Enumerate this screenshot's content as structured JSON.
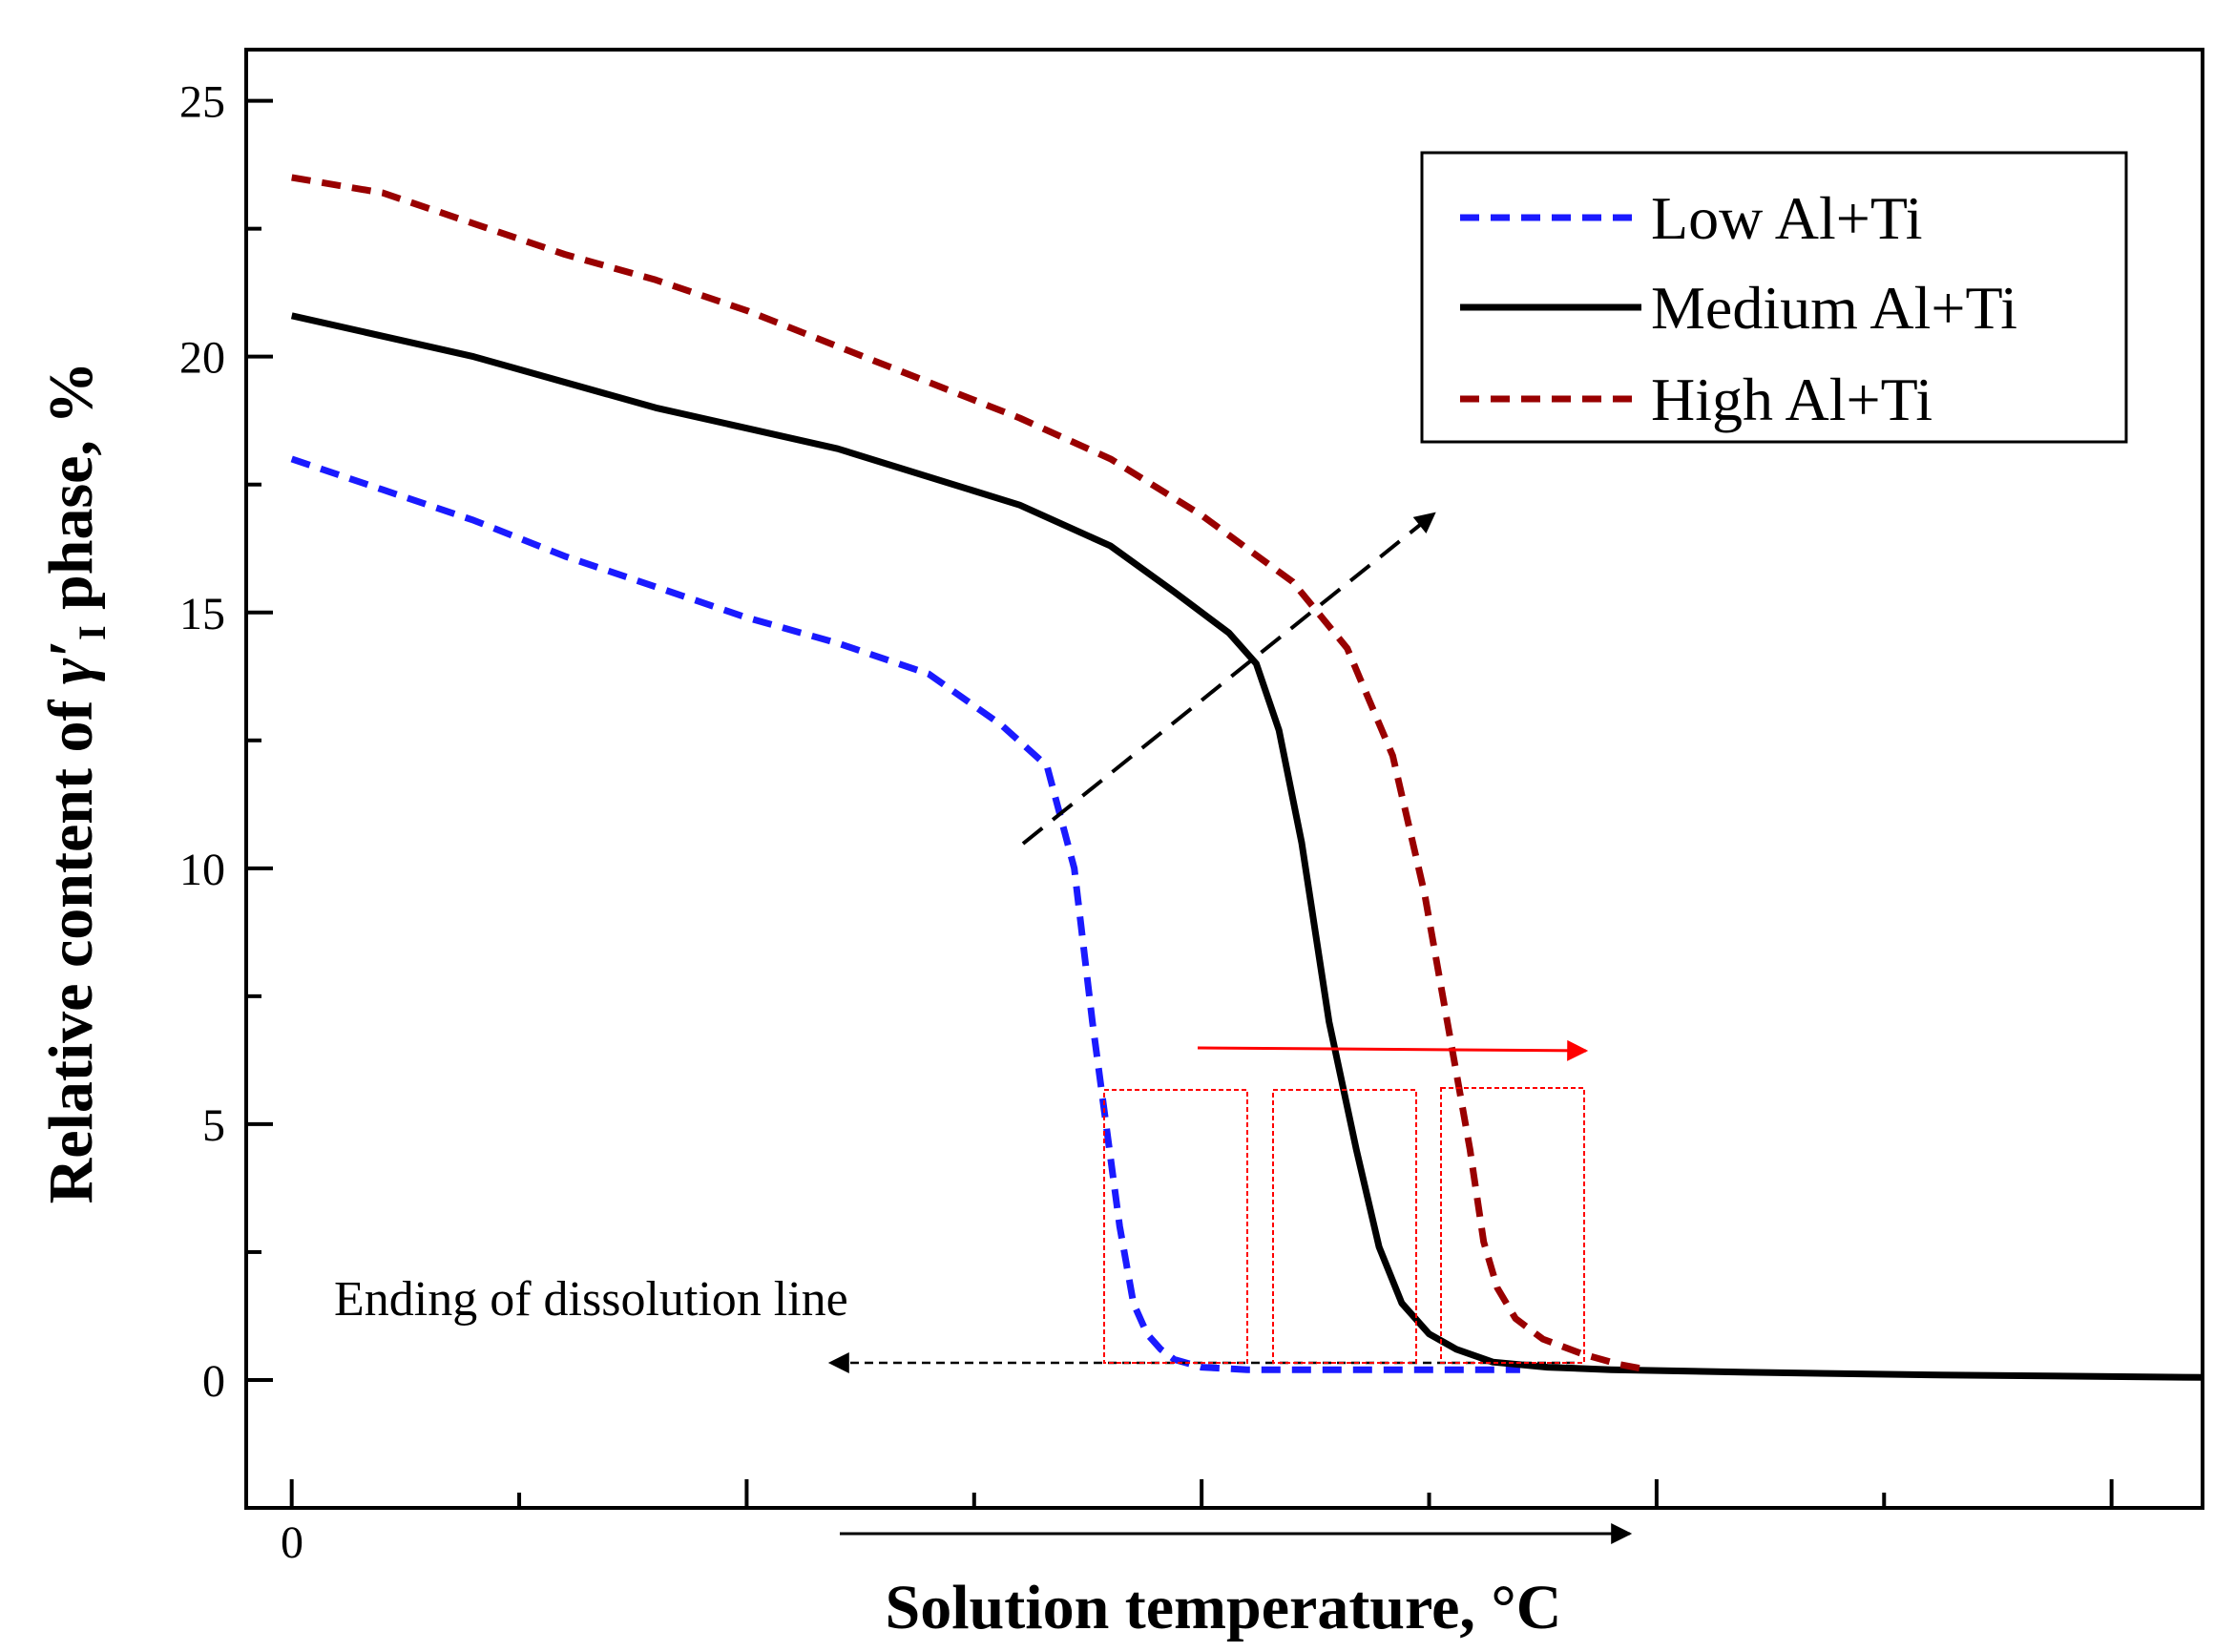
{
  "chart_data": {
    "type": "line",
    "title": "",
    "xlabel": "Solution temperature, °C",
    "ylabel": {
      "prefix": "Relative content of ",
      "symbol": "γ′",
      "subscript": "I",
      "suffix": " phase, %"
    },
    "xlim": [
      -0.5,
      21.0
    ],
    "ylim": [
      -2.5,
      26.0
    ],
    "x_tick_labels": [
      {
        "x": 0,
        "label": "0"
      }
    ],
    "y_ticks": [
      0,
      5,
      10,
      15,
      20,
      25
    ],
    "series": [
      {
        "name": "Low Al+Ti",
        "color": "#1a1aff",
        "style": "dashed",
        "x": [
          0,
          1,
          2,
          3,
          4,
          5,
          6,
          7,
          7.8,
          8.3,
          8.6,
          8.8,
          8.95,
          9.1,
          9.25,
          9.4,
          9.55,
          9.7,
          10.0,
          10.5,
          11.5,
          12.5,
          13.5
        ],
        "y": [
          18.0,
          17.4,
          16.8,
          16.1,
          15.5,
          14.9,
          14.4,
          13.8,
          12.8,
          12.0,
          10.0,
          7.0,
          5.0,
          3.0,
          1.5,
          0.9,
          0.6,
          0.4,
          0.25,
          0.2,
          0.2,
          0.2,
          0.2
        ]
      },
      {
        "name": "Medium Al+Ti",
        "color": "#000000",
        "style": "solid",
        "x": [
          0,
          2,
          4,
          5,
          6,
          8,
          9,
          9.7,
          10.3,
          10.6,
          10.85,
          11.1,
          11.4,
          11.7,
          11.95,
          12.2,
          12.5,
          12.8,
          13.2,
          13.8,
          14.5,
          16,
          18,
          21
        ],
        "y": [
          20.8,
          20.0,
          19.0,
          18.6,
          18.2,
          17.1,
          16.3,
          15.4,
          14.6,
          14.0,
          12.7,
          10.5,
          7.0,
          4.5,
          2.6,
          1.5,
          0.9,
          0.6,
          0.35,
          0.25,
          0.2,
          0.15,
          0.1,
          0.05
        ]
      },
      {
        "name": "High Al+Ti",
        "color": "#990000",
        "style": "dashed",
        "x": [
          0,
          1,
          2,
          3,
          4,
          5,
          6,
          7,
          8,
          9,
          10,
          11,
          11.6,
          12.1,
          12.45,
          12.7,
          12.95,
          13.1,
          13.25,
          13.45,
          13.75,
          14.2,
          14.6,
          14.9
        ],
        "y": [
          23.5,
          23.2,
          22.6,
          22.0,
          21.5,
          20.9,
          20.2,
          19.5,
          18.8,
          18.0,
          16.9,
          15.6,
          14.3,
          12.2,
          9.5,
          7.0,
          4.5,
          2.7,
          1.8,
          1.2,
          0.8,
          0.5,
          0.3,
          0.2
        ]
      }
    ],
    "legend": {
      "position": "top-right"
    },
    "annotations": {
      "dissolution_text": "Ending of dissolution line",
      "x_zero_label": "0"
    }
  }
}
